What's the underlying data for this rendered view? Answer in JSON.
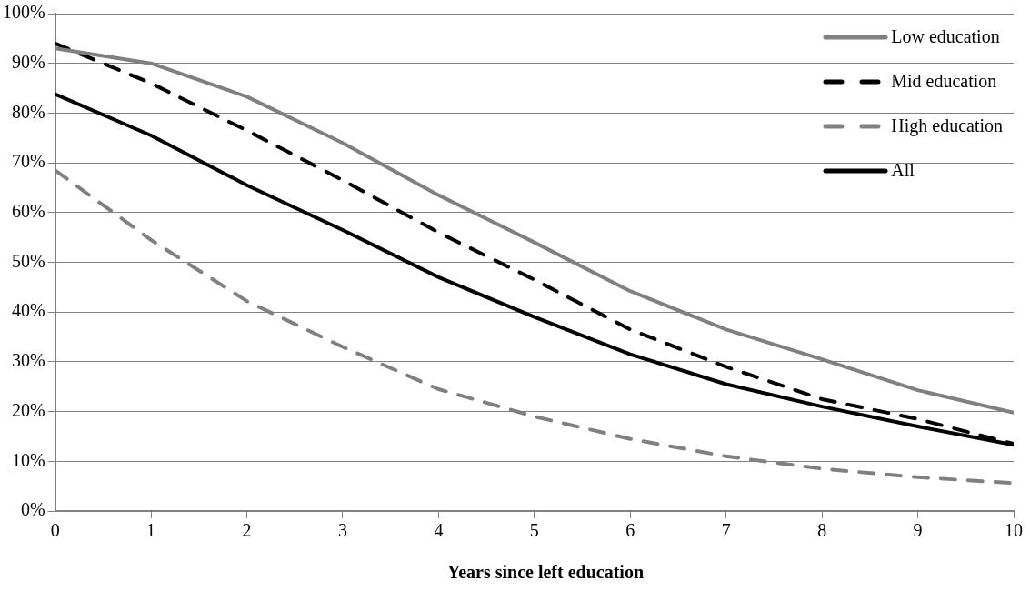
{
  "chart_data": {
    "type": "line",
    "xlabel": "Years since left education",
    "x": [
      0,
      1,
      2,
      3,
      4,
      5,
      6,
      7,
      8,
      9,
      10
    ],
    "xlim": [
      0,
      10
    ],
    "xticks": [
      0,
      1,
      2,
      3,
      4,
      5,
      6,
      7,
      8,
      9,
      10
    ],
    "ylim": [
      0,
      100
    ],
    "yticks": [
      {
        "value": 0,
        "label": "0%"
      },
      {
        "value": 10,
        "label": "10%"
      },
      {
        "value": 20,
        "label": "20%"
      },
      {
        "value": 30,
        "label": "30%"
      },
      {
        "value": 40,
        "label": "40%"
      },
      {
        "value": 50,
        "label": "50%"
      },
      {
        "value": 60,
        "label": "60%"
      },
      {
        "value": 70,
        "label": "70%"
      },
      {
        "value": 80,
        "label": "80%"
      },
      {
        "value": 90,
        "label": "90%"
      },
      {
        "value": 100,
        "label": "100%"
      }
    ],
    "grid": "y",
    "legend": "top right",
    "marker": "none",
    "series": [
      {
        "name": "Low education",
        "color": "#808080",
        "line_style": "solid",
        "values": [
          93,
          90,
          83.3,
          74,
          63.5,
          54,
          44.2,
          36.5,
          30.5,
          24.3,
          19.8
        ]
      },
      {
        "name": "Mid education",
        "color": "#000000",
        "line_style": "dashed",
        "values": [
          94,
          86,
          76.5,
          66.5,
          56,
          46.5,
          36.5,
          29,
          22.5,
          18.5,
          13.5
        ]
      },
      {
        "name": "High education",
        "color": "#808080",
        "line_style": "dashed",
        "values": [
          68.5,
          54.5,
          42.2,
          33,
          24.5,
          19,
          14.5,
          11,
          8.5,
          6.8,
          5.6
        ]
      },
      {
        "name": "All",
        "color": "#000000",
        "line_style": "solid",
        "values": [
          83.8,
          75.5,
          65.5,
          56.5,
          47,
          39,
          31.5,
          25.5,
          21,
          17,
          13.3
        ]
      }
    ]
  }
}
